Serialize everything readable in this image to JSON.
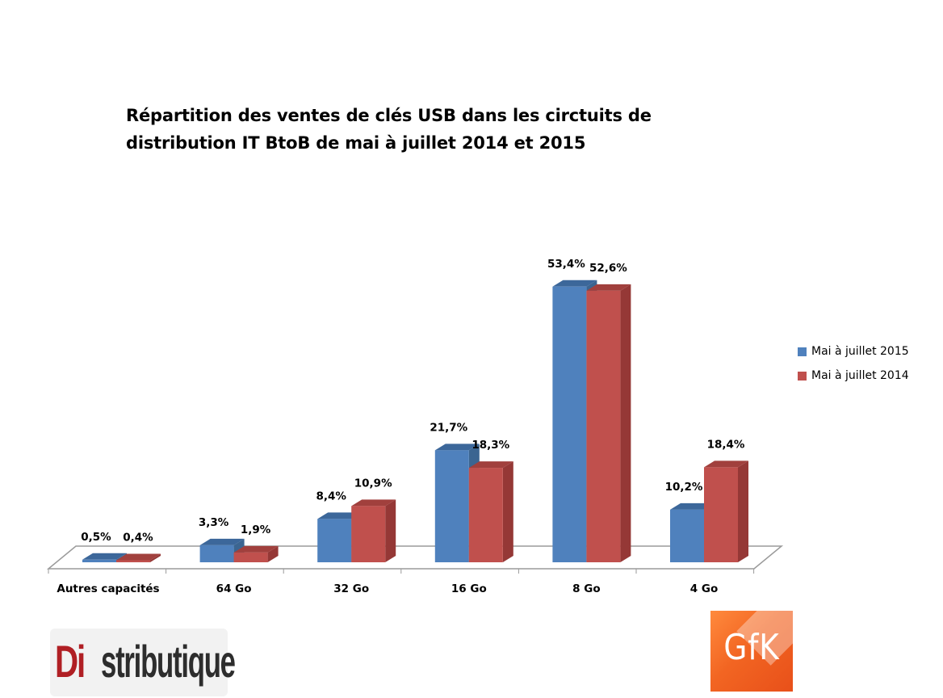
{
  "title_lines": [
    "Répartition des ventes de clés USB dans les circtuits de",
    "distribution IT BtoB de mai à juillet 2014 et 2015"
  ],
  "chart_data": {
    "type": "bar",
    "title": "Répartition des ventes de clés USB dans les circtuits de distribution IT BtoB de mai à juillet 2014 et 2015",
    "categories": [
      "Autres capacités",
      "64 Go",
      "32 Go",
      "16 Go",
      "8 Go",
      "4 Go"
    ],
    "series": [
      {
        "name": "Mai à juillet 2015",
        "values": [
          0.5,
          3.3,
          8.4,
          21.7,
          53.4,
          10.2
        ],
        "labels": [
          "0,5%",
          "3,3%",
          "8,4%",
          "21,7%",
          "53,4%",
          "10,2%"
        ],
        "color": "#4f81bd"
      },
      {
        "name": "Mai à juillet 2014",
        "values": [
          0.4,
          1.9,
          10.9,
          18.3,
          52.6,
          18.4
        ],
        "labels": [
          "0,4%",
          "1,9%",
          "10,9%",
          "18,3%",
          "52,6%",
          "18,4%"
        ],
        "color": "#c0504d"
      }
    ],
    "ylim": [
      0,
      60
    ],
    "legend": "right",
    "grid": false,
    "style": "3d-clustered-column"
  },
  "logos": {
    "distributique": {
      "first": "Di",
      "rest": "stributique"
    },
    "gfk": "GfK"
  }
}
